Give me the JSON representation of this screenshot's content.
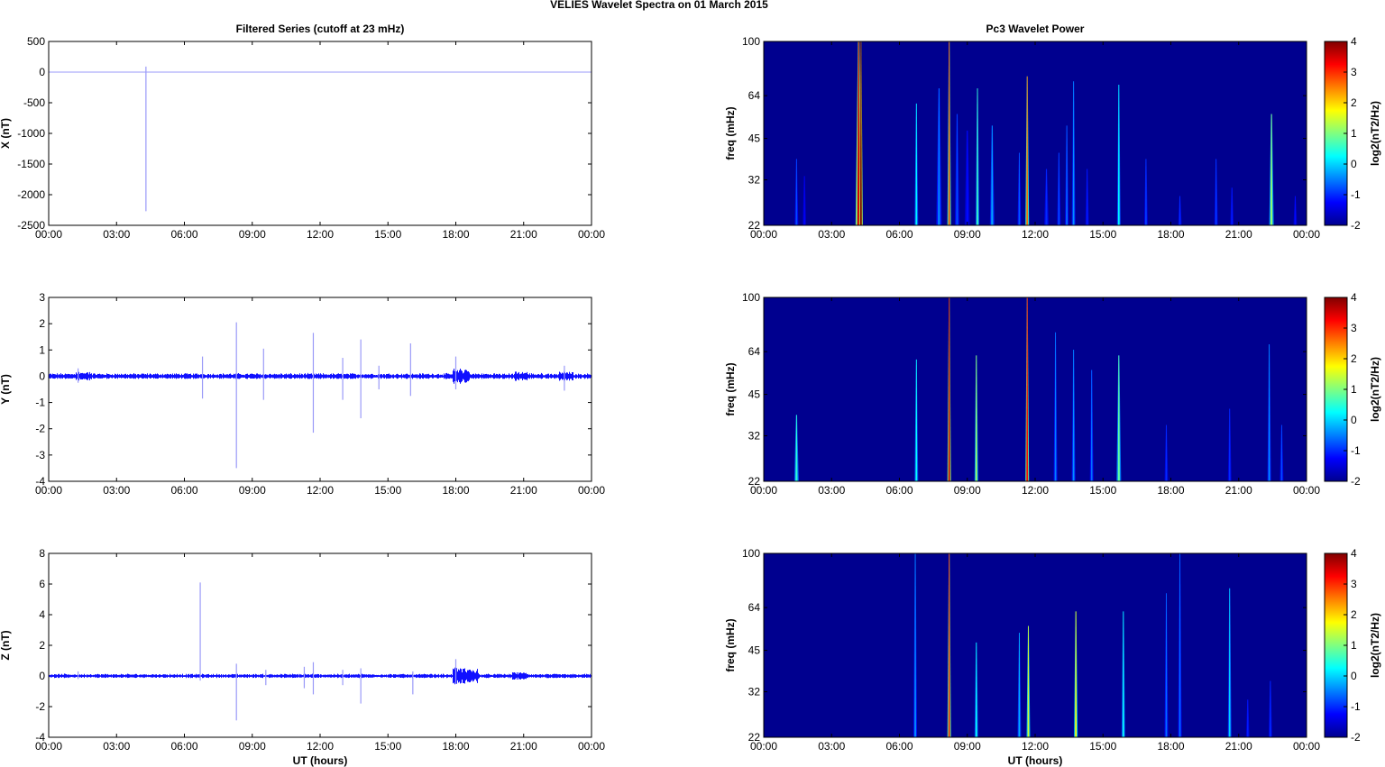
{
  "figure": {
    "title": "VELIES Wavelet Spectra on 01 March     2015",
    "left_column_title": "Filtered Series (cutoff at 23 mHz)",
    "right_column_title": "Pc3 Wavelet Power"
  },
  "colors": {
    "trace": "#1010ff",
    "trace_thin": "#9a9af8",
    "spectrogram_background": "#00008f",
    "axis": "#000000"
  },
  "colormap": [
    "#00008f",
    "#0000ff",
    "#0080ff",
    "#00ffff",
    "#80ff80",
    "#ffff00",
    "#ff8000",
    "#ff0000",
    "#800000"
  ],
  "chart_data": [
    {
      "id": "x-series",
      "type": "line",
      "ylabel": "X (nT)",
      "xlabel": "",
      "xlim": [
        0,
        24
      ],
      "ylim": [
        -2500,
        500
      ],
      "yticks": [
        500,
        0,
        -500,
        -1000,
        -1500,
        -2000,
        -2500
      ],
      "xticks": [
        "00:00",
        "03:00",
        "06:00",
        "09:00",
        "12:00",
        "15:00",
        "18:00",
        "21:00",
        "00:00"
      ],
      "noise": 0,
      "spikes": [
        {
          "t": 4.3,
          "min": -2270,
          "max": 90
        }
      ],
      "bursts": []
    },
    {
      "id": "y-series",
      "type": "line",
      "ylabel": "Y (nT)",
      "xlabel": "",
      "xlim": [
        0,
        24
      ],
      "ylim": [
        -4,
        3
      ],
      "yticks": [
        3,
        2,
        1,
        0,
        -1,
        -2,
        -3,
        -4
      ],
      "xticks": [
        "00:00",
        "03:00",
        "06:00",
        "09:00",
        "12:00",
        "15:00",
        "18:00",
        "21:00",
        "00:00"
      ],
      "noise": 0.08,
      "spikes": [
        {
          "t": 1.3,
          "min": -0.25,
          "max": 0.3
        },
        {
          "t": 6.8,
          "min": -0.85,
          "max": 0.75
        },
        {
          "t": 8.3,
          "min": -3.5,
          "max": 2.05
        },
        {
          "t": 9.5,
          "min": -0.9,
          "max": 1.05
        },
        {
          "t": 11.7,
          "min": -2.15,
          "max": 1.65
        },
        {
          "t": 13.0,
          "min": -0.9,
          "max": 0.7
        },
        {
          "t": 13.8,
          "min": -1.6,
          "max": 1.4
        },
        {
          "t": 14.6,
          "min": -0.5,
          "max": 0.4
        },
        {
          "t": 16.0,
          "min": -0.75,
          "max": 1.25
        },
        {
          "t": 18.0,
          "min": -0.5,
          "max": 0.75
        },
        {
          "t": 22.8,
          "min": -0.55,
          "max": 0.4
        }
      ],
      "bursts": [
        {
          "t0": 1.2,
          "t1": 1.9,
          "amp": 0.15
        },
        {
          "t0": 17.9,
          "t1": 18.6,
          "amp": 0.25
        },
        {
          "t0": 20.6,
          "t1": 21.2,
          "amp": 0.15
        },
        {
          "t0": 22.6,
          "t1": 23.2,
          "amp": 0.15
        }
      ]
    },
    {
      "id": "z-series",
      "type": "line",
      "ylabel": "Z (nT)",
      "xlabel": "UT (hours)",
      "xlim": [
        0,
        24
      ],
      "ylim": [
        -4,
        8
      ],
      "yticks": [
        8,
        6,
        4,
        2,
        0,
        -2,
        -4
      ],
      "xticks": [
        "00:00",
        "03:00",
        "06:00",
        "09:00",
        "12:00",
        "15:00",
        "18:00",
        "21:00",
        "00:00"
      ],
      "noise": 0.1,
      "spikes": [
        {
          "t": 1.3,
          "min": -0.2,
          "max": 0.3
        },
        {
          "t": 6.7,
          "min": -0.3,
          "max": 6.1
        },
        {
          "t": 8.3,
          "min": -2.9,
          "max": 0.8
        },
        {
          "t": 9.6,
          "min": -0.6,
          "max": 0.4
        },
        {
          "t": 11.3,
          "min": -0.8,
          "max": 0.6
        },
        {
          "t": 11.7,
          "min": -1.2,
          "max": 0.9
        },
        {
          "t": 13.0,
          "min": -0.6,
          "max": 0.4
        },
        {
          "t": 13.8,
          "min": -1.8,
          "max": 0.5
        },
        {
          "t": 16.1,
          "min": -1.2,
          "max": 0.3
        },
        {
          "t": 18.0,
          "min": -0.5,
          "max": 1.1
        }
      ],
      "bursts": [
        {
          "t0": 17.9,
          "t1": 19.0,
          "amp": 0.45
        },
        {
          "t0": 20.5,
          "t1": 21.2,
          "amp": 0.2
        }
      ]
    },
    {
      "id": "x-spectrum",
      "type": "heatmap",
      "ylabel": "freq (mHz)",
      "xlabel": "",
      "xlim": [
        0,
        24
      ],
      "ylim": [
        22,
        100
      ],
      "yscale": "log",
      "yticks": [
        100,
        64,
        45,
        32,
        22
      ],
      "xticks": [
        "00:00",
        "03:00",
        "06:00",
        "09:00",
        "12:00",
        "15:00",
        "18:00",
        "21:00",
        "00:00"
      ],
      "colorbar_label": "log2(nT2/Hz)",
      "clim": [
        -2,
        4
      ],
      "cticks": [
        4,
        3,
        2,
        1,
        0,
        -1,
        -2
      ],
      "streaks": [
        {
          "t": 1.45,
          "f_top": 38,
          "level": -0.8,
          "w": 0.08
        },
        {
          "t": 1.8,
          "f_top": 33,
          "level": -1.3,
          "w": 0.06
        },
        {
          "t": 4.2,
          "f_top": 100,
          "level": 3.5,
          "w": 0.14
        },
        {
          "t": 4.3,
          "f_top": 100,
          "level": 4,
          "w": 0.08
        },
        {
          "t": 6.75,
          "f_top": 60,
          "level": 0.2,
          "w": 0.06
        },
        {
          "t": 7.75,
          "f_top": 68,
          "level": -0.5,
          "w": 0.12
        },
        {
          "t": 8.2,
          "f_top": 100,
          "level": 2.8,
          "w": 0.08
        },
        {
          "t": 8.55,
          "f_top": 55,
          "level": -0.8,
          "w": 0.1
        },
        {
          "t": 9.0,
          "f_top": 48,
          "level": -1.2,
          "w": 0.12
        },
        {
          "t": 9.45,
          "f_top": 68,
          "level": 0.6,
          "w": 0.06
        },
        {
          "t": 10.1,
          "f_top": 50,
          "level": -0.3,
          "w": 0.1
        },
        {
          "t": 11.3,
          "f_top": 40,
          "level": -0.7,
          "w": 0.08
        },
        {
          "t": 11.65,
          "f_top": 75,
          "level": 2.6,
          "w": 0.06
        },
        {
          "t": 12.5,
          "f_top": 35,
          "level": -1.0,
          "w": 0.1
        },
        {
          "t": 13.05,
          "f_top": 40,
          "level": -0.8,
          "w": 0.08
        },
        {
          "t": 13.4,
          "f_top": 50,
          "level": -0.6,
          "w": 0.08
        },
        {
          "t": 13.7,
          "f_top": 72,
          "level": -0.4,
          "w": 0.06
        },
        {
          "t": 14.3,
          "f_top": 35,
          "level": -1.1,
          "w": 0.08
        },
        {
          "t": 15.7,
          "f_top": 70,
          "level": 0.2,
          "w": 0.06
        },
        {
          "t": 16.9,
          "f_top": 38,
          "level": -0.9,
          "w": 0.06
        },
        {
          "t": 18.4,
          "f_top": 28,
          "level": -1.0,
          "w": 0.06
        },
        {
          "t": 20.0,
          "f_top": 38,
          "level": -0.9,
          "w": 0.06
        },
        {
          "t": 20.7,
          "f_top": 30,
          "level": -1.1,
          "w": 0.06
        },
        {
          "t": 22.45,
          "f_top": 55,
          "level": 1.1,
          "w": 0.1
        },
        {
          "t": 23.5,
          "f_top": 28,
          "level": -1.2,
          "w": 0.06
        }
      ]
    },
    {
      "id": "y-spectrum",
      "type": "heatmap",
      "ylabel": "freq (mHz)",
      "xlabel": "",
      "xlim": [
        0,
        24
      ],
      "ylim": [
        22,
        100
      ],
      "yscale": "log",
      "yticks": [
        100,
        64,
        45,
        32,
        22
      ],
      "xticks": [
        "00:00",
        "03:00",
        "06:00",
        "09:00",
        "12:00",
        "15:00",
        "18:00",
        "21:00",
        "00:00"
      ],
      "colorbar_label": "log2(nT2/Hz)",
      "clim": [
        -2,
        4
      ],
      "cticks": [
        4,
        3,
        2,
        1,
        0,
        -1,
        -2
      ],
      "streaks": [
        {
          "t": 1.45,
          "f_top": 38,
          "level": 0.5,
          "w": 0.1
        },
        {
          "t": 6.75,
          "f_top": 60,
          "level": 0.3,
          "w": 0.06
        },
        {
          "t": 8.2,
          "f_top": 100,
          "level": 3.5,
          "w": 0.06
        },
        {
          "t": 9.4,
          "f_top": 62,
          "level": 1.2,
          "w": 0.08
        },
        {
          "t": 11.65,
          "f_top": 100,
          "level": 3.2,
          "w": 0.06
        },
        {
          "t": 12.9,
          "f_top": 75,
          "level": -0.5,
          "w": 0.06
        },
        {
          "t": 13.7,
          "f_top": 65,
          "level": -0.4,
          "w": 0.06
        },
        {
          "t": 14.5,
          "f_top": 55,
          "level": -0.6,
          "w": 0.06
        },
        {
          "t": 15.7,
          "f_top": 62,
          "level": 0.8,
          "w": 0.1
        },
        {
          "t": 17.8,
          "f_top": 35,
          "level": -1.0,
          "w": 0.06
        },
        {
          "t": 20.6,
          "f_top": 40,
          "level": -1.0,
          "w": 0.06
        },
        {
          "t": 22.35,
          "f_top": 68,
          "level": -0.4,
          "w": 0.06
        },
        {
          "t": 22.9,
          "f_top": 35,
          "level": -0.8,
          "w": 0.08
        }
      ]
    },
    {
      "id": "z-spectrum",
      "type": "heatmap",
      "ylabel": "freq (mHz)",
      "xlabel": "UT (hours)",
      "xlim": [
        0,
        24
      ],
      "ylim": [
        22,
        100
      ],
      "yscale": "log",
      "yticks": [
        100,
        64,
        45,
        32,
        22
      ],
      "xticks": [
        "00:00",
        "03:00",
        "06:00",
        "09:00",
        "12:00",
        "15:00",
        "18:00",
        "21:00",
        "00:00"
      ],
      "colorbar_label": "log2(nT2/Hz)",
      "clim": [
        -2,
        4
      ],
      "cticks": [
        4,
        3,
        2,
        1,
        0,
        -1,
        -2
      ],
      "streaks": [
        {
          "t": 6.7,
          "f_top": 100,
          "level": -0.4,
          "w": 0.06
        },
        {
          "t": 8.2,
          "f_top": 100,
          "level": 3.0,
          "w": 0.06
        },
        {
          "t": 9.4,
          "f_top": 48,
          "level": 0.3,
          "w": 0.08
        },
        {
          "t": 11.3,
          "f_top": 52,
          "level": -0.2,
          "w": 0.06
        },
        {
          "t": 11.7,
          "f_top": 55,
          "level": 1.5,
          "w": 0.06
        },
        {
          "t": 13.8,
          "f_top": 62,
          "level": 1.8,
          "w": 0.06
        },
        {
          "t": 15.9,
          "f_top": 62,
          "level": 0.3,
          "w": 0.06
        },
        {
          "t": 17.8,
          "f_top": 72,
          "level": -0.6,
          "w": 0.08
        },
        {
          "t": 18.4,
          "f_top": 100,
          "level": -0.6,
          "w": 0.08
        },
        {
          "t": 20.6,
          "f_top": 75,
          "level": 0.0,
          "w": 0.06
        },
        {
          "t": 21.4,
          "f_top": 30,
          "level": -1.1,
          "w": 0.06
        },
        {
          "t": 22.4,
          "f_top": 35,
          "level": -1.0,
          "w": 0.06
        }
      ]
    }
  ]
}
